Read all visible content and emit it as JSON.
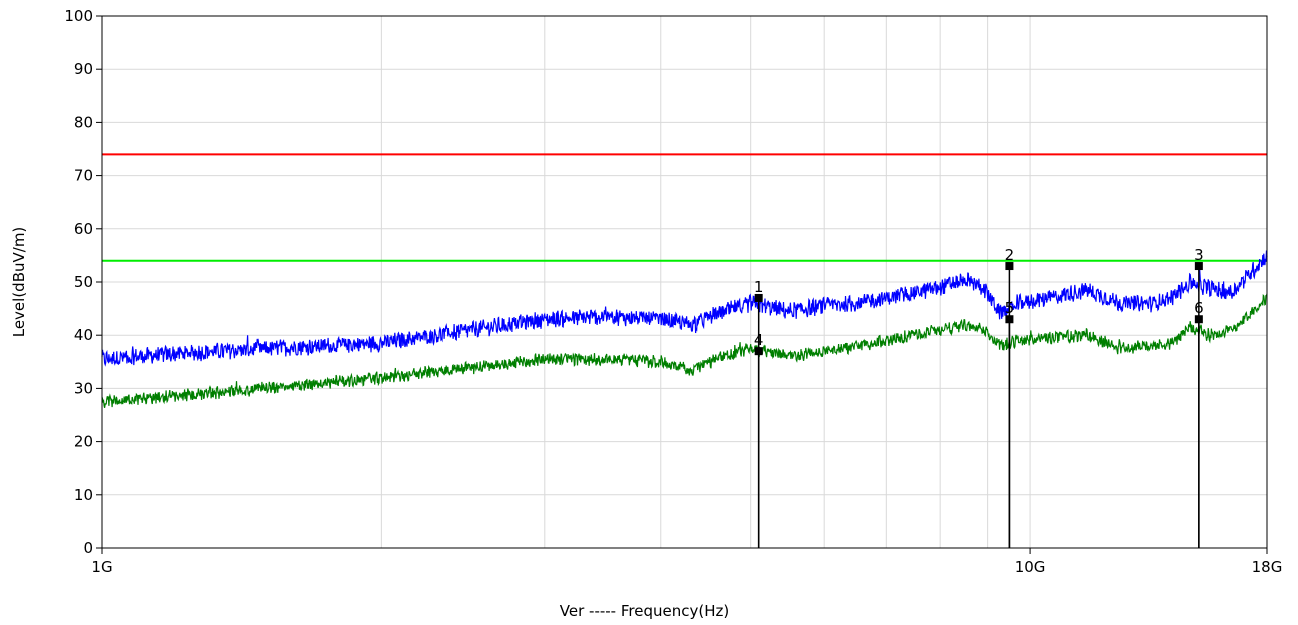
{
  "chart_data": {
    "type": "line",
    "xscale": "log",
    "xlabel": "Ver ----- Frequency(Hz)",
    "ylabel": "Level(dBuV/m)",
    "xlim": [
      1000000000,
      18000000000
    ],
    "ylim": [
      0,
      100
    ],
    "x_tick_labels": [
      {
        "value": 1000000000,
        "label": "1G"
      },
      {
        "value": 10000000000,
        "label": "10G"
      },
      {
        "value": 18000000000,
        "label": "18G"
      }
    ],
    "y_ticks": [
      0,
      10,
      20,
      30,
      40,
      50,
      60,
      70,
      80,
      90,
      100
    ],
    "grid": true,
    "limit_lines": [
      {
        "value": 74,
        "color": "#ff0000"
      },
      {
        "value": 54,
        "color": "#00ee00"
      }
    ],
    "series": [
      {
        "color": "#0000ff",
        "x": [
          1000000000,
          1200000000,
          1500000000,
          2000000000,
          2500000000,
          3000000000,
          3500000000,
          4000000000,
          4300000000,
          4600000000,
          5000000000,
          5500000000,
          6000000000,
          6500000000,
          7000000000,
          7500000000,
          8000000000,
          8500000000,
          8900000000,
          9300000000,
          9700000000,
          10500000000,
          11500000000,
          12500000000,
          13500000000,
          14200000000,
          14900000000,
          15500000000,
          16500000000,
          18000000000
        ],
        "y": [
          35.5,
          36.5,
          37.5,
          38.5,
          41,
          43,
          43.5,
          43,
          42,
          44,
          46,
          44.5,
          45.5,
          46,
          47,
          48,
          49,
          50.5,
          49,
          44,
          46,
          47,
          48.5,
          46,
          46,
          47,
          50,
          49,
          48,
          55
        ]
      },
      {
        "color": "#007f00",
        "x": [
          1000000000,
          1200000000,
          1500000000,
          2000000000,
          2500000000,
          3000000000,
          3500000000,
          4000000000,
          4300000000,
          4600000000,
          5000000000,
          5500000000,
          6000000000,
          6500000000,
          7000000000,
          7500000000,
          8000000000,
          8500000000,
          8900000000,
          9300000000,
          9700000000,
          10500000000,
          11500000000,
          12500000000,
          13500000000,
          14200000000,
          14900000000,
          15500000000,
          16500000000,
          18000000000
        ],
        "y": [
          27.5,
          28.5,
          30,
          32,
          34,
          35.5,
          35.5,
          35,
          33.5,
          35.5,
          37.5,
          36,
          37,
          38,
          39,
          40,
          41,
          42,
          41,
          38,
          39,
          39.5,
          40,
          37.5,
          38,
          38.5,
          41.5,
          40,
          41,
          47
        ]
      }
    ],
    "markers": [
      {
        "label": "1",
        "x": 5100000000,
        "y": 47
      },
      {
        "label": "4",
        "x": 5100000000,
        "y": 37
      },
      {
        "label": "2",
        "x": 9500000000,
        "y": 53
      },
      {
        "label": "5",
        "x": 9500000000,
        "y": 43
      },
      {
        "label": "3",
        "x": 15200000000,
        "y": 53
      },
      {
        "label": "6",
        "x": 15200000000,
        "y": 43
      }
    ]
  }
}
